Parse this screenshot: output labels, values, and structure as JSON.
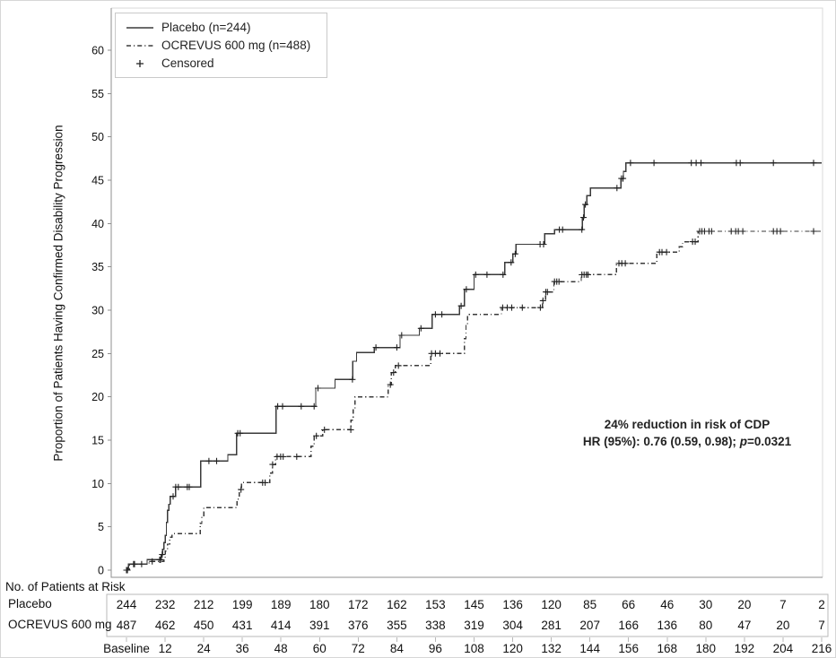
{
  "colors": {
    "curve": "#3a3a3a",
    "censor": "#222222",
    "axis": "#8f8f8f",
    "light_border": "#d9d9d9",
    "table_border": "#b8b8b8",
    "text": "#111111"
  },
  "figure": {
    "legend_censored_label": "Censored",
    "annotation": {
      "line1": "24% reduction in risk of CDP",
      "hr_prefix": "HR (95%): 0.76 (0.59, 0.98); ",
      "p_symbol": "p",
      "p_suffix": "=0.0321"
    }
  },
  "chart_data": {
    "type": "line",
    "subtype": "kaplan-meier-step",
    "title": "",
    "xlabel": "",
    "ylabel": "Proportion of Patients Having Confirmed Disability Progression",
    "xlim": [
      0,
      216
    ],
    "ylim": [
      0,
      62
    ],
    "grid": false,
    "legend_position": "top-left",
    "y_ticks": [
      0,
      5,
      10,
      15,
      20,
      25,
      30,
      35,
      40,
      45,
      50,
      55,
      60
    ],
    "x_tick_labels": [
      "Baseline",
      "12",
      "24",
      "36",
      "48",
      "60",
      "72",
      "84",
      "96",
      "108",
      "120",
      "132",
      "144",
      "156",
      "168",
      "180",
      "192",
      "204",
      "216"
    ],
    "x_tick_weeks": [
      0,
      12,
      24,
      36,
      48,
      60,
      72,
      84,
      96,
      108,
      120,
      132,
      144,
      156,
      168,
      180,
      192,
      204,
      216
    ],
    "annotation_lines": [
      "24% reduction in risk of CDP",
      "HR (95%): 0.76 (0.59, 0.98); p=0.0321"
    ],
    "series": [
      {
        "name": "Placebo (n=244)",
        "style": "solid",
        "data_name": "placebo-curve",
        "steps": [
          [
            0,
            0
          ],
          [
            0.6,
            0.7
          ],
          [
            6.4,
            1.2
          ],
          [
            10.8,
            1.8
          ],
          [
            11.2,
            2.4
          ],
          [
            11.6,
            3.2
          ],
          [
            12.0,
            4.0
          ],
          [
            12.4,
            5.5
          ],
          [
            12.8,
            6.9
          ],
          [
            13.2,
            7.6
          ],
          [
            13.6,
            8.5
          ],
          [
            15.3,
            9.6
          ],
          [
            23.1,
            12.6
          ],
          [
            31.5,
            13.3
          ],
          [
            34.2,
            15.8
          ],
          [
            46.5,
            18.9
          ],
          [
            58.8,
            21.0
          ],
          [
            64.8,
            22.0
          ],
          [
            70.3,
            24.1
          ],
          [
            71.5,
            25.1
          ],
          [
            77,
            25.7
          ],
          [
            85,
            27.1
          ],
          [
            91,
            27.9
          ],
          [
            95,
            29.5
          ],
          [
            103.5,
            30.5
          ],
          [
            105,
            32.4
          ],
          [
            108,
            34.1
          ],
          [
            117.5,
            35.5
          ],
          [
            120,
            36.5
          ],
          [
            121,
            37.6
          ],
          [
            130,
            38.8
          ],
          [
            133,
            39.3
          ],
          [
            141.6,
            40.7
          ],
          [
            142.2,
            42.2
          ],
          [
            143,
            43.2
          ],
          [
            144.2,
            44.1
          ],
          [
            153.6,
            45.2
          ],
          [
            154.4,
            46.0
          ],
          [
            155.2,
            47.0
          ]
        ],
        "censored_weeks": [
          0,
          2.2,
          4.7,
          10.3,
          10.6,
          11.1,
          14.5,
          15.3,
          16.1,
          18.9,
          19.5,
          25.6,
          28,
          34.6,
          35.3,
          47,
          48.5,
          54.3,
          58.3,
          59.5,
          70.2,
          77.5,
          84,
          85.5,
          91.5,
          96,
          98,
          104,
          105.6,
          108.5,
          112,
          117,
          119.5,
          120.8,
          128.5,
          129.6,
          134.5,
          135.5,
          141.5,
          142,
          142.6,
          152.4,
          153.8,
          154.3,
          156.6,
          163.9,
          175.5,
          177,
          178.5,
          189.5,
          190.7,
          201,
          213.5
        ]
      },
      {
        "name": "OCREVUS 600 mg (n=488)",
        "style": "dash-dot",
        "data_name": "ocrevus-curve",
        "steps": [
          [
            0,
            0
          ],
          [
            0.9,
            0.7
          ],
          [
            7,
            1.0
          ],
          [
            11.6,
            1.5
          ],
          [
            12.1,
            2.2
          ],
          [
            12.7,
            3.0
          ],
          [
            13.5,
            3.8
          ],
          [
            14.2,
            4.2
          ],
          [
            22.9,
            5.4
          ],
          [
            23.4,
            6.3
          ],
          [
            24,
            7.2
          ],
          [
            34.3,
            8.2
          ],
          [
            35,
            9.3
          ],
          [
            35.7,
            10.1
          ],
          [
            44.5,
            11.2
          ],
          [
            45.4,
            12.2
          ],
          [
            46.3,
            13.1
          ],
          [
            57.3,
            14.3
          ],
          [
            58.3,
            15.5
          ],
          [
            61,
            16.2
          ],
          [
            69.8,
            17.3
          ],
          [
            70.4,
            18.6
          ],
          [
            71,
            20.0
          ],
          [
            81.3,
            21.4
          ],
          [
            82.3,
            22.8
          ],
          [
            83.5,
            23.6
          ],
          [
            94.6,
            25.0
          ],
          [
            105,
            26.7
          ],
          [
            105.5,
            28.2
          ],
          [
            106,
            29.5
          ],
          [
            116.5,
            30.3
          ],
          [
            129.3,
            31.1
          ],
          [
            130.2,
            32.1
          ],
          [
            132.8,
            33.3
          ],
          [
            141.3,
            34.1
          ],
          [
            152.3,
            35.4
          ],
          [
            164.8,
            36.7
          ],
          [
            171.8,
            37.3
          ],
          [
            172.8,
            37.9
          ],
          [
            177.6,
            39.1
          ]
        ],
        "censored_weeks": [
          0.3,
          2.5,
          8,
          35.6,
          42.3,
          43.1,
          45.4,
          46.8,
          47.9,
          48.7,
          52.9,
          59,
          61.5,
          69.7,
          82,
          83,
          84.5,
          94.8,
          96,
          97.4,
          116.9,
          118.3,
          119.7,
          123,
          128.6,
          129.4,
          130.3,
          130.8,
          133,
          133.7,
          134.4,
          141.5,
          142.2,
          142.9,
          143.4,
          153,
          153.9,
          155,
          165.6,
          166.4,
          167.8,
          175.9,
          176.7,
          178.1,
          178.8,
          179.6,
          181,
          181.8,
          187.9,
          189.3,
          190.1,
          191.5,
          201,
          202.1,
          203.2,
          213.5
        ]
      }
    ],
    "at_risk": {
      "title": "No. of Patients at Risk",
      "rows": [
        {
          "label": "Placebo",
          "values": [
            244,
            232,
            212,
            199,
            189,
            180,
            172,
            162,
            153,
            145,
            136,
            120,
            85,
            66,
            46,
            30,
            20,
            7,
            2
          ]
        },
        {
          "label": "OCREVUS 600 mg",
          "values": [
            487,
            462,
            450,
            431,
            414,
            391,
            376,
            355,
            338,
            319,
            304,
            281,
            207,
            166,
            136,
            80,
            47,
            20,
            7
          ]
        }
      ]
    }
  }
}
